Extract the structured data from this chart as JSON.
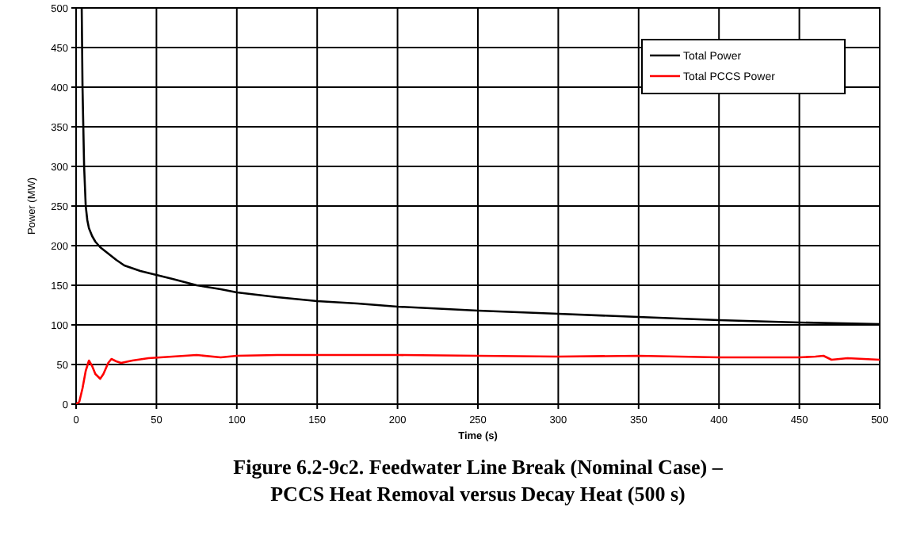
{
  "chart_data": {
    "type": "line",
    "title": "Figure 6.2-9c2.  Feedwater Line Break (Nominal Case) –\nPCCS Heat Removal versus Decay Heat (500 s)",
    "xlabel": "Time (s)",
    "ylabel": "Power (MW)",
    "xlim": [
      0,
      500
    ],
    "xticks": [
      0,
      50,
      100,
      150,
      200,
      250,
      300,
      350,
      400,
      450,
      500
    ],
    "ylim": [
      0,
      500
    ],
    "yticks": [
      0,
      50,
      100,
      150,
      200,
      250,
      300,
      350,
      400,
      450,
      500
    ],
    "grid": true,
    "legend": "top right",
    "line_style": "solid",
    "series": [
      {
        "name": "Total Power",
        "color": "#000000",
        "x": [
          3.5,
          4,
          5,
          6,
          7,
          8,
          10,
          12,
          15,
          20,
          25,
          30,
          40,
          50,
          60,
          75,
          90,
          100,
          125,
          150,
          175,
          200,
          250,
          300,
          350,
          400,
          450,
          500
        ],
        "values": [
          500,
          400,
          300,
          250,
          232,
          222,
          212,
          205,
          198,
          190,
          182,
          175,
          168,
          163,
          158,
          150,
          145,
          141,
          135,
          130,
          127,
          123,
          118,
          114,
          110,
          106,
          103,
          101
        ]
      },
      {
        "name": "Total PCCS Power",
        "color": "#ff0000",
        "x": [
          0,
          2,
          4,
          6,
          8,
          10,
          12,
          15,
          17,
          20,
          22,
          25,
          28,
          35,
          45,
          60,
          75,
          90,
          100,
          125,
          150,
          200,
          250,
          300,
          350,
          400,
          450,
          460,
          465,
          470,
          480,
          490,
          500
        ],
        "values": [
          0,
          3,
          20,
          42,
          55,
          48,
          38,
          32,
          38,
          52,
          57,
          54,
          52,
          55,
          58,
          60,
          62,
          59,
          61,
          62,
          62,
          62,
          61,
          60,
          61,
          59,
          59,
          60,
          61,
          56,
          58,
          57,
          56
        ]
      }
    ]
  }
}
